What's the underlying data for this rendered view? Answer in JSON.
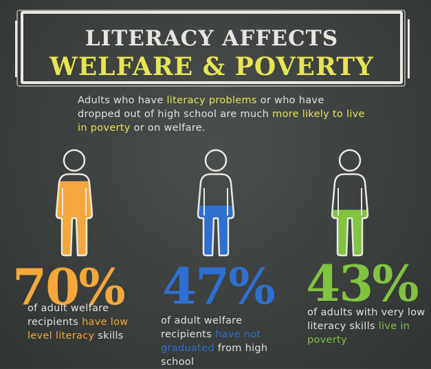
{
  "title": {
    "line1": "LITERACY AFFECTS",
    "line2": "WELFARE & POVERTY"
  },
  "intro": {
    "part1": "Adults who have ",
    "hl1": "literacy problems",
    "part2": " or who have dropped out of high school are much ",
    "hl2": "more likely to live in poverty",
    "part3": " or on welfare."
  },
  "colors": {
    "orange": "#f4a83c",
    "blue": "#2f6fd0",
    "green": "#82c341",
    "chalk": "#e9e9e2",
    "highlight": "#e7e455"
  },
  "stats": [
    {
      "value": "70%",
      "fill_fraction": 0.7,
      "desc_a": "of adult welfare recipients ",
      "desc_hl": "have low level literacy",
      "desc_b": " skills"
    },
    {
      "value": "47%",
      "fill_fraction": 0.47,
      "desc_a": "of adult welfare recipients ",
      "desc_hl": "have not graduated",
      "desc_b": " from high school"
    },
    {
      "value": "43%",
      "fill_fraction": 0.43,
      "desc_a": "of adults with very low literacy skills ",
      "desc_hl": "live in poverty",
      "desc_b": ""
    }
  ]
}
